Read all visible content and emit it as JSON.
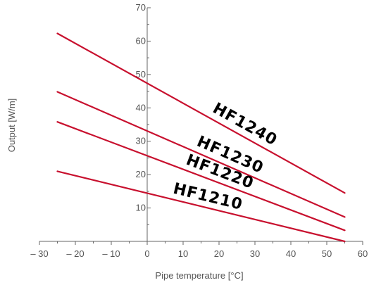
{
  "chart_data": {
    "type": "line",
    "title": "",
    "xlabel": "Pipe temperature [°C]",
    "ylabel": "Output [W/m]",
    "xlim": [
      -30,
      60
    ],
    "ylim": [
      0,
      70
    ],
    "xticks": [
      -30,
      -20,
      -10,
      0,
      10,
      20,
      30,
      40,
      50,
      60
    ],
    "xtick_labels": [
      "– 30",
      "– 20",
      "– 10",
      "0",
      "10",
      "20",
      "30",
      "40",
      "50",
      "60"
    ],
    "yticks": [
      10,
      20,
      30,
      40,
      50,
      60,
      70
    ],
    "ytick_labels": [
      "10",
      "20",
      "30",
      "40",
      "50",
      "60",
      "70"
    ],
    "grid": false,
    "series": [
      {
        "name": "HF1240",
        "color": "#c8102e",
        "x": [
          -25,
          55
        ],
        "y": [
          62.3,
          14.5
        ]
      },
      {
        "name": "HF1230",
        "color": "#c8102e",
        "x": [
          -25,
          55
        ],
        "y": [
          44.8,
          7.3
        ]
      },
      {
        "name": "HF1220",
        "color": "#c8102e",
        "x": [
          -25,
          55
        ],
        "y": [
          35.8,
          3.3
        ]
      },
      {
        "name": "HF1210",
        "color": "#c8102e",
        "x": [
          -25,
          55
        ],
        "y": [
          21.0,
          0.0
        ]
      }
    ]
  }
}
